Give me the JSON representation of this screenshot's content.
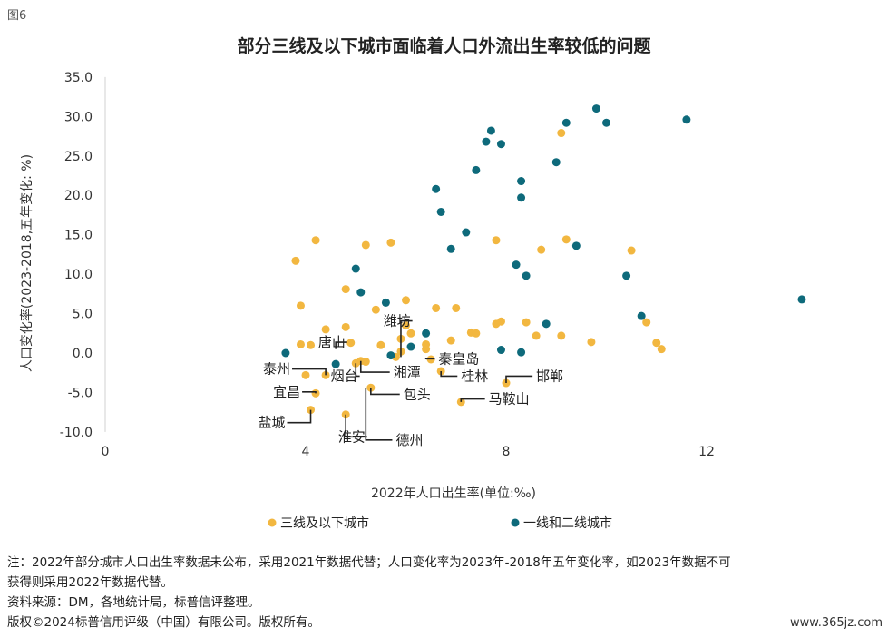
{
  "figure_label": "图6",
  "title": "部分三线及以下城市面临着人口外流出生率较低的问题",
  "chart_data": {
    "type": "scatter",
    "xlabel": "2022年人口出生率(单位:‰)",
    "ylabel": "人口变化率(2023-2018,五年变化: %)",
    "xlim": [
      0,
      15.5
    ],
    "ylim": [
      -10,
      35
    ],
    "x_ticks": [
      "0",
      "4",
      "8",
      "12"
    ],
    "x_tick_values": [
      0,
      4,
      8,
      12
    ],
    "y_ticks": [
      "35.0",
      "30.0",
      "25.0",
      "20.0",
      "15.0",
      "10.0",
      "5.0",
      "0.0",
      "-5.0",
      "-10.0"
    ],
    "y_tick_values": [
      35,
      30,
      25,
      20,
      15,
      10,
      5,
      0,
      -5,
      -10
    ],
    "grid": false,
    "legend_position": "bottom",
    "series": [
      {
        "name": "三线及以下城市",
        "color": "#F2B740",
        "points": [
          [
            3.8,
            11.7
          ],
          [
            4.2,
            14.3
          ],
          [
            3.9,
            6.0
          ],
          [
            3.9,
            1.1
          ],
          [
            4.1,
            1.0
          ],
          [
            4.4,
            3.0
          ],
          [
            4.8,
            3.3
          ],
          [
            4.8,
            8.1
          ],
          [
            4.9,
            1.3
          ],
          [
            5.0,
            -1.3
          ],
          [
            5.1,
            -1.0
          ],
          [
            5.2,
            -1.1
          ],
          [
            5.4,
            5.5
          ],
          [
            5.5,
            1.0
          ],
          [
            5.8,
            -0.5
          ],
          [
            5.9,
            0.2
          ],
          [
            5.9,
            1.8
          ],
          [
            6.0,
            3.5
          ],
          [
            6.1,
            2.5
          ],
          [
            6.0,
            6.7
          ],
          [
            6.4,
            1.1
          ],
          [
            6.4,
            0.5
          ],
          [
            6.5,
            -0.8
          ],
          [
            6.7,
            -2.3
          ],
          [
            6.6,
            5.7
          ],
          [
            6.9,
            1.6
          ],
          [
            7.0,
            5.7
          ],
          [
            7.3,
            2.6
          ],
          [
            7.4,
            2.5
          ],
          [
            7.8,
            3.7
          ],
          [
            7.9,
            4.0
          ],
          [
            8.4,
            3.9
          ],
          [
            8.6,
            2.2
          ],
          [
            8.7,
            13.1
          ],
          [
            9.1,
            2.2
          ],
          [
            9.2,
            14.4
          ],
          [
            9.7,
            1.4
          ],
          [
            10.5,
            13.0
          ],
          [
            10.8,
            3.9
          ],
          [
            11.0,
            1.3
          ],
          [
            11.1,
            0.5
          ],
          [
            9.1,
            27.9
          ],
          [
            7.8,
            14.3
          ],
          [
            5.2,
            13.7
          ],
          [
            5.7,
            14.0
          ],
          [
            4.0,
            -2.8
          ],
          [
            4.4,
            -2.8
          ],
          [
            4.2,
            -5.1
          ],
          [
            4.1,
            -7.2
          ],
          [
            4.8,
            -7.8
          ],
          [
            5.3,
            -4.4
          ],
          [
            7.1,
            -6.2
          ],
          [
            8.0,
            -3.8
          ]
        ]
      },
      {
        "name": "一线和二线城市",
        "color": "#0E6A7B",
        "points": [
          [
            3.6,
            0.0
          ],
          [
            4.6,
            -1.4
          ],
          [
            5.0,
            10.7
          ],
          [
            5.1,
            7.7
          ],
          [
            5.6,
            6.4
          ],
          [
            5.7,
            -0.3
          ],
          [
            6.1,
            0.8
          ],
          [
            6.4,
            2.5
          ],
          [
            6.6,
            20.8
          ],
          [
            6.7,
            17.9
          ],
          [
            6.9,
            13.2
          ],
          [
            7.2,
            15.3
          ],
          [
            7.4,
            23.2
          ],
          [
            7.6,
            26.8
          ],
          [
            7.7,
            28.2
          ],
          [
            7.9,
            26.5
          ],
          [
            7.9,
            0.4
          ],
          [
            8.2,
            11.2
          ],
          [
            8.3,
            21.8
          ],
          [
            8.3,
            19.7
          ],
          [
            8.3,
            0.1
          ],
          [
            8.4,
            9.8
          ],
          [
            8.8,
            3.7
          ],
          [
            9.0,
            24.2
          ],
          [
            9.2,
            29.2
          ],
          [
            9.4,
            13.6
          ],
          [
            9.8,
            31.0
          ],
          [
            10.4,
            9.8
          ],
          [
            10.7,
            4.7
          ],
          [
            11.6,
            29.6
          ],
          [
            13.9,
            6.8
          ],
          [
            10.0,
            29.2
          ]
        ]
      }
    ],
    "annotations": [
      {
        "text": "唐山",
        "x": 4.6,
        "y": 0.5,
        "tx": 4.25,
        "ty": 0.8
      },
      {
        "text": "潍坊",
        "x": 5.9,
        "y": -0.5,
        "tx": 5.55,
        "ty": 3.5
      },
      {
        "text": "秦皇岛",
        "x": 6.4,
        "y": -0.8,
        "tx": 6.65,
        "ty": -1.3
      },
      {
        "text": "泰州",
        "x": 4.4,
        "y": -2.8,
        "tx": 3.15,
        "ty": -2.6
      },
      {
        "text": "湘潭",
        "x": 5.1,
        "y": -1.0,
        "tx": 5.75,
        "ty": -3.0
      },
      {
        "text": "烟台",
        "x": 5.0,
        "y": -1.3,
        "tx": 4.5,
        "ty": -3.5
      },
      {
        "text": "桂林",
        "x": 6.7,
        "y": -2.3,
        "tx": 7.1,
        "ty": -3.5
      },
      {
        "text": "邯郸",
        "x": 8.0,
        "y": -3.8,
        "tx": 8.6,
        "ty": -3.5
      },
      {
        "text": "宜昌",
        "x": 4.2,
        "y": -5.1,
        "tx": 3.35,
        "ty": -5.5
      },
      {
        "text": "包头",
        "x": 5.3,
        "y": -4.4,
        "tx": 5.95,
        "ty": -5.8
      },
      {
        "text": "马鞍山",
        "x": 7.1,
        "y": -6.2,
        "tx": 7.65,
        "ty": -6.4
      },
      {
        "text": "盐城",
        "x": 4.1,
        "y": -7.2,
        "tx": 3.05,
        "ty": -9.4
      },
      {
        "text": "淮安",
        "x": 4.8,
        "y": -7.8,
        "tx": 4.65,
        "ty": -11.2
      },
      {
        "text": "德州",
        "x": 5.2,
        "y": -4.4,
        "tx": 5.8,
        "ty": -11.6
      }
    ]
  },
  "footnote": {
    "line1": "注：2022年部分城市人口出生率数据未公布，采用2021年数据代替；人口变化率为2023年-2018年五年变化率，如2023年数据不可",
    "line2": "获得则采用2022年数据代替。",
    "line3": "资料来源：DM，各地统计局，标普信评整理。",
    "line4": "版权©2024标普信用评级（中国）有限公司。版权所有。"
  },
  "watermark": "www.365jz.com"
}
